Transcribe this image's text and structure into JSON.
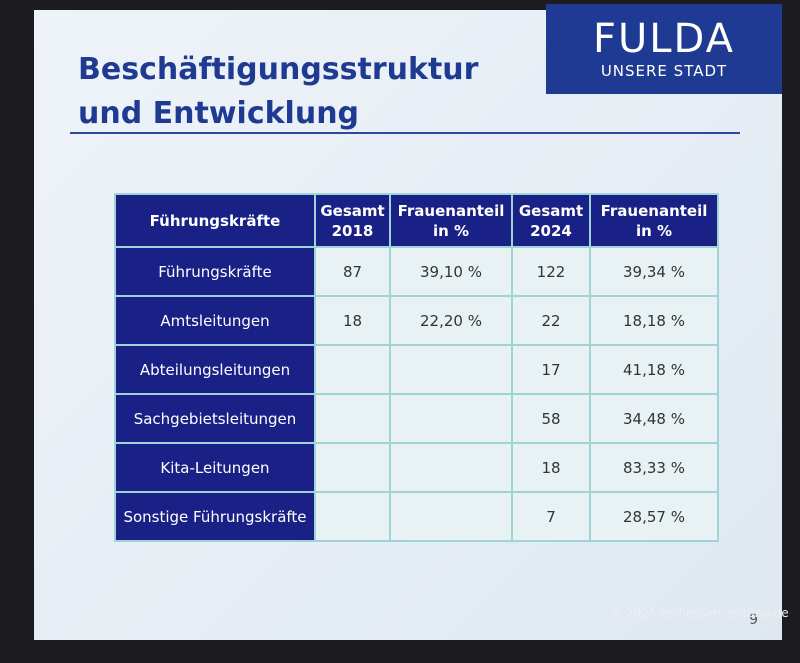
{
  "slide": {
    "title": [
      "Beschäftigungsstruktur",
      "und Entwicklung"
    ],
    "logo": {
      "name": "FULDA",
      "tagline": "UNSERE STADT"
    },
    "table": {
      "header": [
        "Führungskräfte",
        "Gesamt 2018",
        "Frauenanteil in %",
        "Gesamt 2024",
        "Frauenanteil in %"
      ],
      "rows": [
        [
          "Führungskräfte",
          "87",
          "39,10 %",
          "122",
          "39,34 %"
        ],
        [
          "Amtsleitungen",
          "18",
          "22,20 %",
          "22",
          "18,18 %"
        ],
        [
          "Abteilungsleitungen",
          null,
          null,
          "17",
          "41,18 %"
        ],
        [
          "Sachgebietsleitungen",
          null,
          null,
          "58",
          "34,48 %"
        ],
        [
          "Kita-Leitungen",
          null,
          null,
          "18",
          "83,33 %"
        ],
        [
          "Sonstige Führungskräfte",
          null,
          null,
          "7",
          "28,57 %"
        ]
      ]
    },
    "page_number": "9"
  },
  "watermark": "© 2025 osthessen-zeitung.de"
}
